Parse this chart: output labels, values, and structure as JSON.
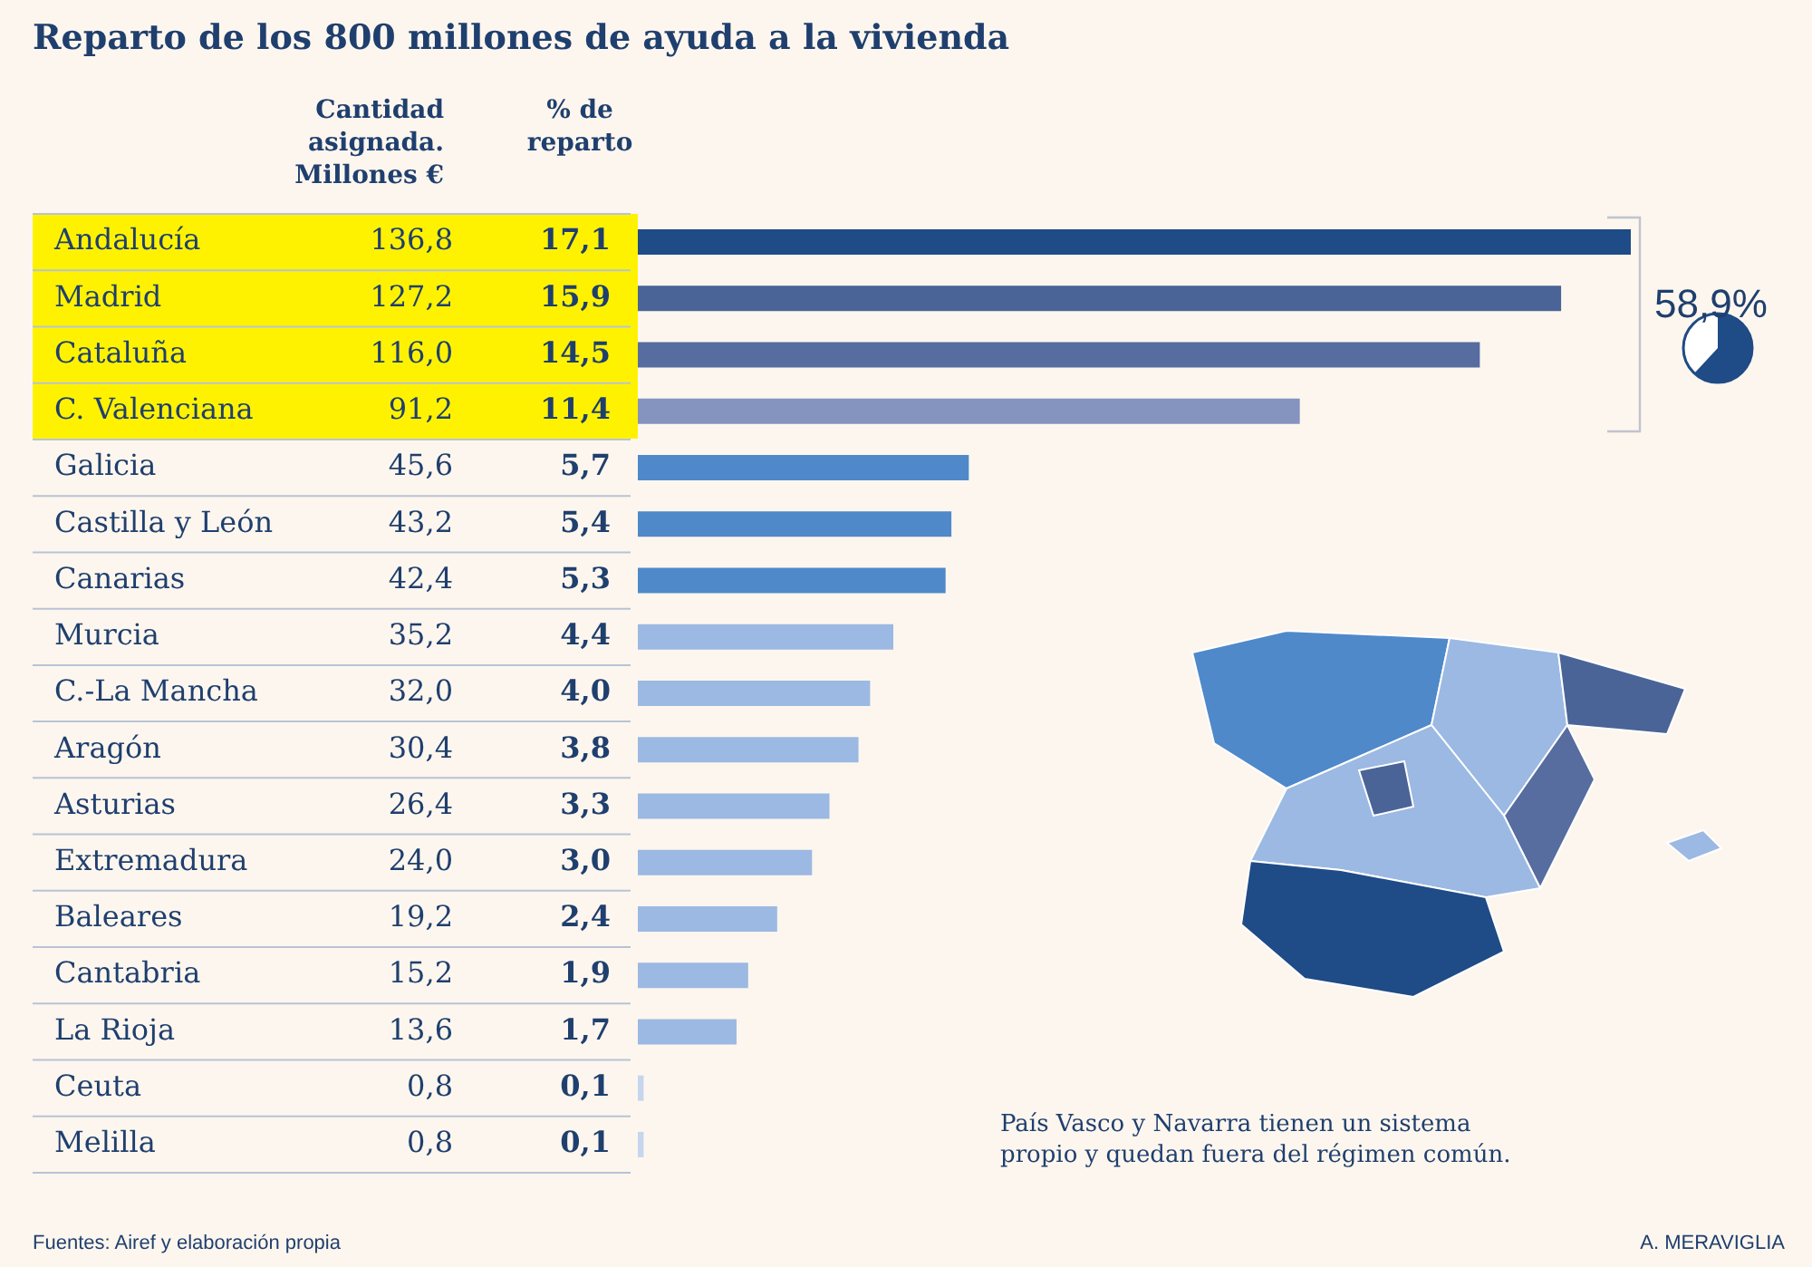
{
  "chart_data": {
    "type": "bar",
    "orientation": "horizontal",
    "title": "Reparto de los 800 millones de ayuda a la vivienda",
    "categories": [
      "Andalucía",
      "Madrid",
      "Cataluña",
      "C. Valenciana",
      "Galicia",
      "Castilla y León",
      "Canarias",
      "Murcia",
      "C.-La Mancha",
      "Aragón",
      "Asturias",
      "Extremadura",
      "Baleares",
      "Cantabria",
      "La Rioja",
      "Ceuta",
      "Melilla"
    ],
    "values": [
      136.8,
      127.2,
      116.0,
      91.2,
      45.6,
      43.2,
      42.4,
      35.2,
      32.0,
      30.4,
      26.4,
      24.0,
      19.2,
      15.2,
      13.6,
      0.8,
      0.8
    ],
    "value_labels": [
      "136,8",
      "127,2",
      "116,0",
      "91,2",
      "45,6",
      "43,2",
      "42,4",
      "35,2",
      "32,0",
      "30,4",
      "26,4",
      "24,0",
      "19,2",
      "15,2",
      "13,6",
      "0,8",
      "0,8"
    ],
    "colors": [
      "#1f4b87",
      "#4a6497",
      "#576c9f",
      "#8593bf",
      "#4f89c9",
      "#4f89c9",
      "#4f89c9",
      "#9bb9e2",
      "#9bb9e2",
      "#9bb9e2",
      "#9bb9e2",
      "#9bb9e2",
      "#9bb9e2",
      "#9bb9e2",
      "#9bb9e2",
      "#c5d6ee",
      "#c5d6ee"
    ],
    "annotations": [
      "Cantidad asignada. Millones €",
      "% de reparto",
      "58,9%",
      "País Vasco y Navarra tienen un sistema propio y quedan fuera del régimen común.",
      "Fuentes: Airef y elaboración propia",
      "A. MERAVIGLIA",
      "17,1",
      "15,9",
      "14,5",
      "11,4",
      "5,7",
      "5,4",
      "5,3",
      "4,4",
      "4,0",
      "3,8",
      "3,3",
      "3,0",
      "2,4",
      "1,9",
      "1,7",
      "0,1",
      "0,1"
    ]
  }
}
